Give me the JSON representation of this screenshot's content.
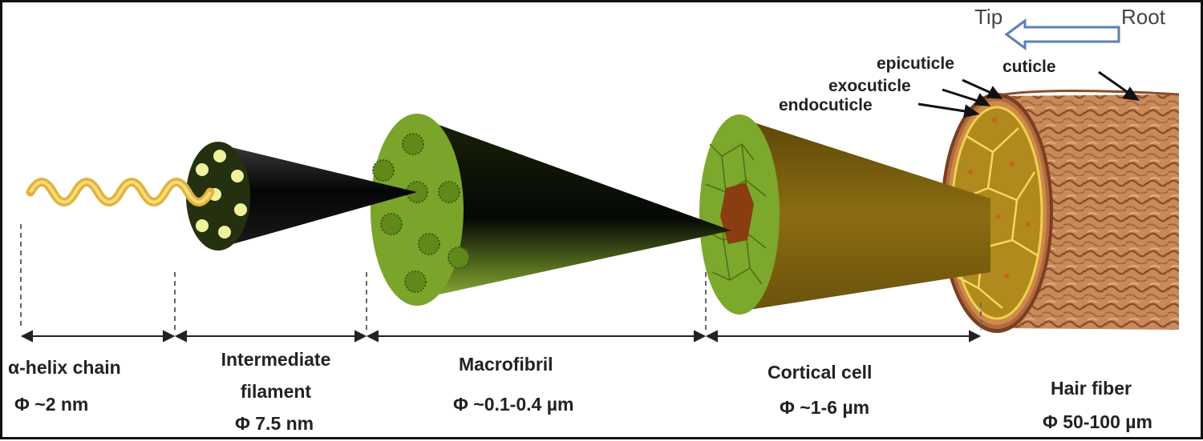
{
  "direction": {
    "tip": "Tip",
    "root": "Root"
  },
  "callouts": {
    "epicuticle": "epicuticle",
    "exocuticle": "exocuticle",
    "endocuticle": "endocuticle",
    "cuticle": "cuticle"
  },
  "levels": [
    {
      "name": "α-helix chain",
      "size": "Φ ~2 nm"
    },
    {
      "name_line1": "Intermediate",
      "name_line2": "filament",
      "size": "Φ 7.5 nm"
    },
    {
      "name": "Macrofibril",
      "size": "Φ ~0.1-0.4 µm"
    },
    {
      "name": "Cortical cell",
      "size": "Φ ~1-6 µm"
    },
    {
      "name": "Hair fiber",
      "size": "Φ 50-100 µm"
    }
  ],
  "colors": {
    "green": "#7aa52a",
    "dark_green": "#3d5a12",
    "helix": "#e2b23a",
    "cortex": "#8a6a14",
    "hair": "#c98a5a",
    "arrow_outline": "#5b7fb5"
  }
}
